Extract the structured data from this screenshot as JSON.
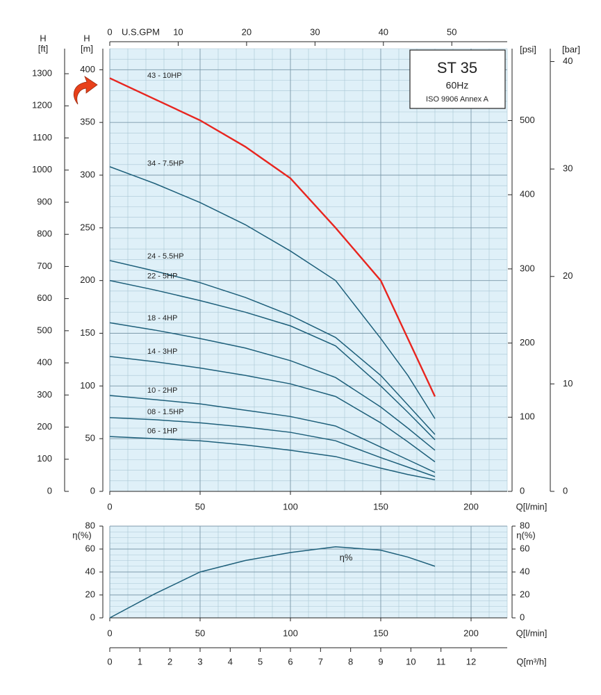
{
  "chart_data": [
    {
      "type": "line",
      "title": "ST 35",
      "subtitle": "60Hz",
      "note": "ISO 9906 Annex A",
      "x_label": "Q[l/min]",
      "y_label": "H",
      "y_unit": "[m]",
      "x": [
        0,
        25,
        50,
        75,
        100,
        125,
        150,
        165,
        180
      ],
      "xlim": [
        0,
        220
      ],
      "xticks": [
        0,
        50,
        100,
        150,
        200
      ],
      "ylim": [
        0,
        420
      ],
      "yticks": [
        0,
        50,
        100,
        150,
        200,
        250,
        300,
        350,
        400
      ],
      "grid": true,
      "grid_step_x": 10,
      "grid_step_y": 10,
      "series": [
        {
          "name": "43 - 10HP",
          "color": "#e8251f",
          "values": [
            392,
            372,
            352,
            327,
            297,
            250,
            200,
            145,
            90
          ]
        },
        {
          "name": "34 - 7.5HP",
          "color": "#1d5f7a",
          "values": [
            308,
            292,
            274,
            253,
            228,
            200,
            145,
            110,
            69
          ]
        },
        {
          "name": "24 - 5.5HP",
          "color": "#1d5f7a",
          "values": [
            219,
            209,
            198,
            184,
            167,
            146,
            110,
            82,
            54
          ]
        },
        {
          "name": "22 - 5HP",
          "color": "#1d5f7a",
          "values": [
            200,
            191,
            181,
            170,
            157,
            138,
            100,
            75,
            49
          ]
        },
        {
          "name": "18 - 4HP",
          "color": "#1d5f7a",
          "values": [
            160,
            153,
            145,
            136,
            124,
            108,
            80,
            60,
            39
          ]
        },
        {
          "name": "14 - 3HP",
          "color": "#1d5f7a",
          "values": [
            128,
            123,
            117,
            110,
            102,
            90,
            65,
            47,
            28
          ]
        },
        {
          "name": "10 - 2HP",
          "color": "#1d5f7a",
          "values": [
            91,
            87,
            83,
            77,
            71,
            62,
            42,
            30,
            18
          ]
        },
        {
          "name": "08 - 1.5HP",
          "color": "#1d5f7a",
          "values": [
            70,
            68,
            65,
            61,
            56,
            48,
            32,
            23,
            14
          ]
        },
        {
          "name": "06 - 1HP",
          "color": "#1d5f7a",
          "values": [
            52,
            50,
            48,
            44,
            39,
            33,
            22,
            16,
            11
          ]
        }
      ],
      "ft_axis": {
        "label": "H",
        "unit": "[ft]",
        "lim": [
          0,
          1378
        ],
        "ticks": [
          0,
          100,
          200,
          300,
          400,
          500,
          600,
          700,
          800,
          900,
          1000,
          1100,
          1200,
          1300
        ]
      },
      "psi_axis": {
        "label": "[psi]",
        "lim": [
          0,
          597
        ],
        "ticks": [
          0,
          100,
          200,
          300,
          400,
          500
        ]
      },
      "bar_axis": {
        "label": "[bar]",
        "lim": [
          0,
          41.2
        ],
        "ticks": [
          0,
          10,
          20,
          30,
          40
        ]
      },
      "gpm_axis": {
        "label": "U.S.GPM",
        "lim": [
          0,
          58.1
        ],
        "ticks": [
          0,
          10,
          20,
          30,
          40,
          50
        ]
      },
      "m3h_axis": {
        "label": "Q[m³/h]",
        "lim": [
          0,
          13.2
        ],
        "ticks": [
          0,
          1,
          2,
          3,
          4,
          5,
          6,
          7,
          8,
          9,
          10,
          11,
          12
        ]
      }
    },
    {
      "type": "line",
      "x_label": "Q[l/min]",
      "y_label": "η(%)",
      "x": [
        0,
        25,
        50,
        75,
        100,
        125,
        150,
        165,
        180
      ],
      "xlim": [
        0,
        220
      ],
      "xticks": [
        0,
        50,
        100,
        150,
        200
      ],
      "ylim": [
        0,
        80
      ],
      "yticks": [
        0,
        20,
        40,
        60,
        80
      ],
      "grid": true,
      "grid_step_x": 10,
      "grid_step_y": 5,
      "series": [
        {
          "name": "η%",
          "color": "#1d5f7a",
          "values": [
            0,
            21,
            40,
            50,
            57,
            62,
            59,
            53,
            45
          ]
        }
      ]
    }
  ]
}
